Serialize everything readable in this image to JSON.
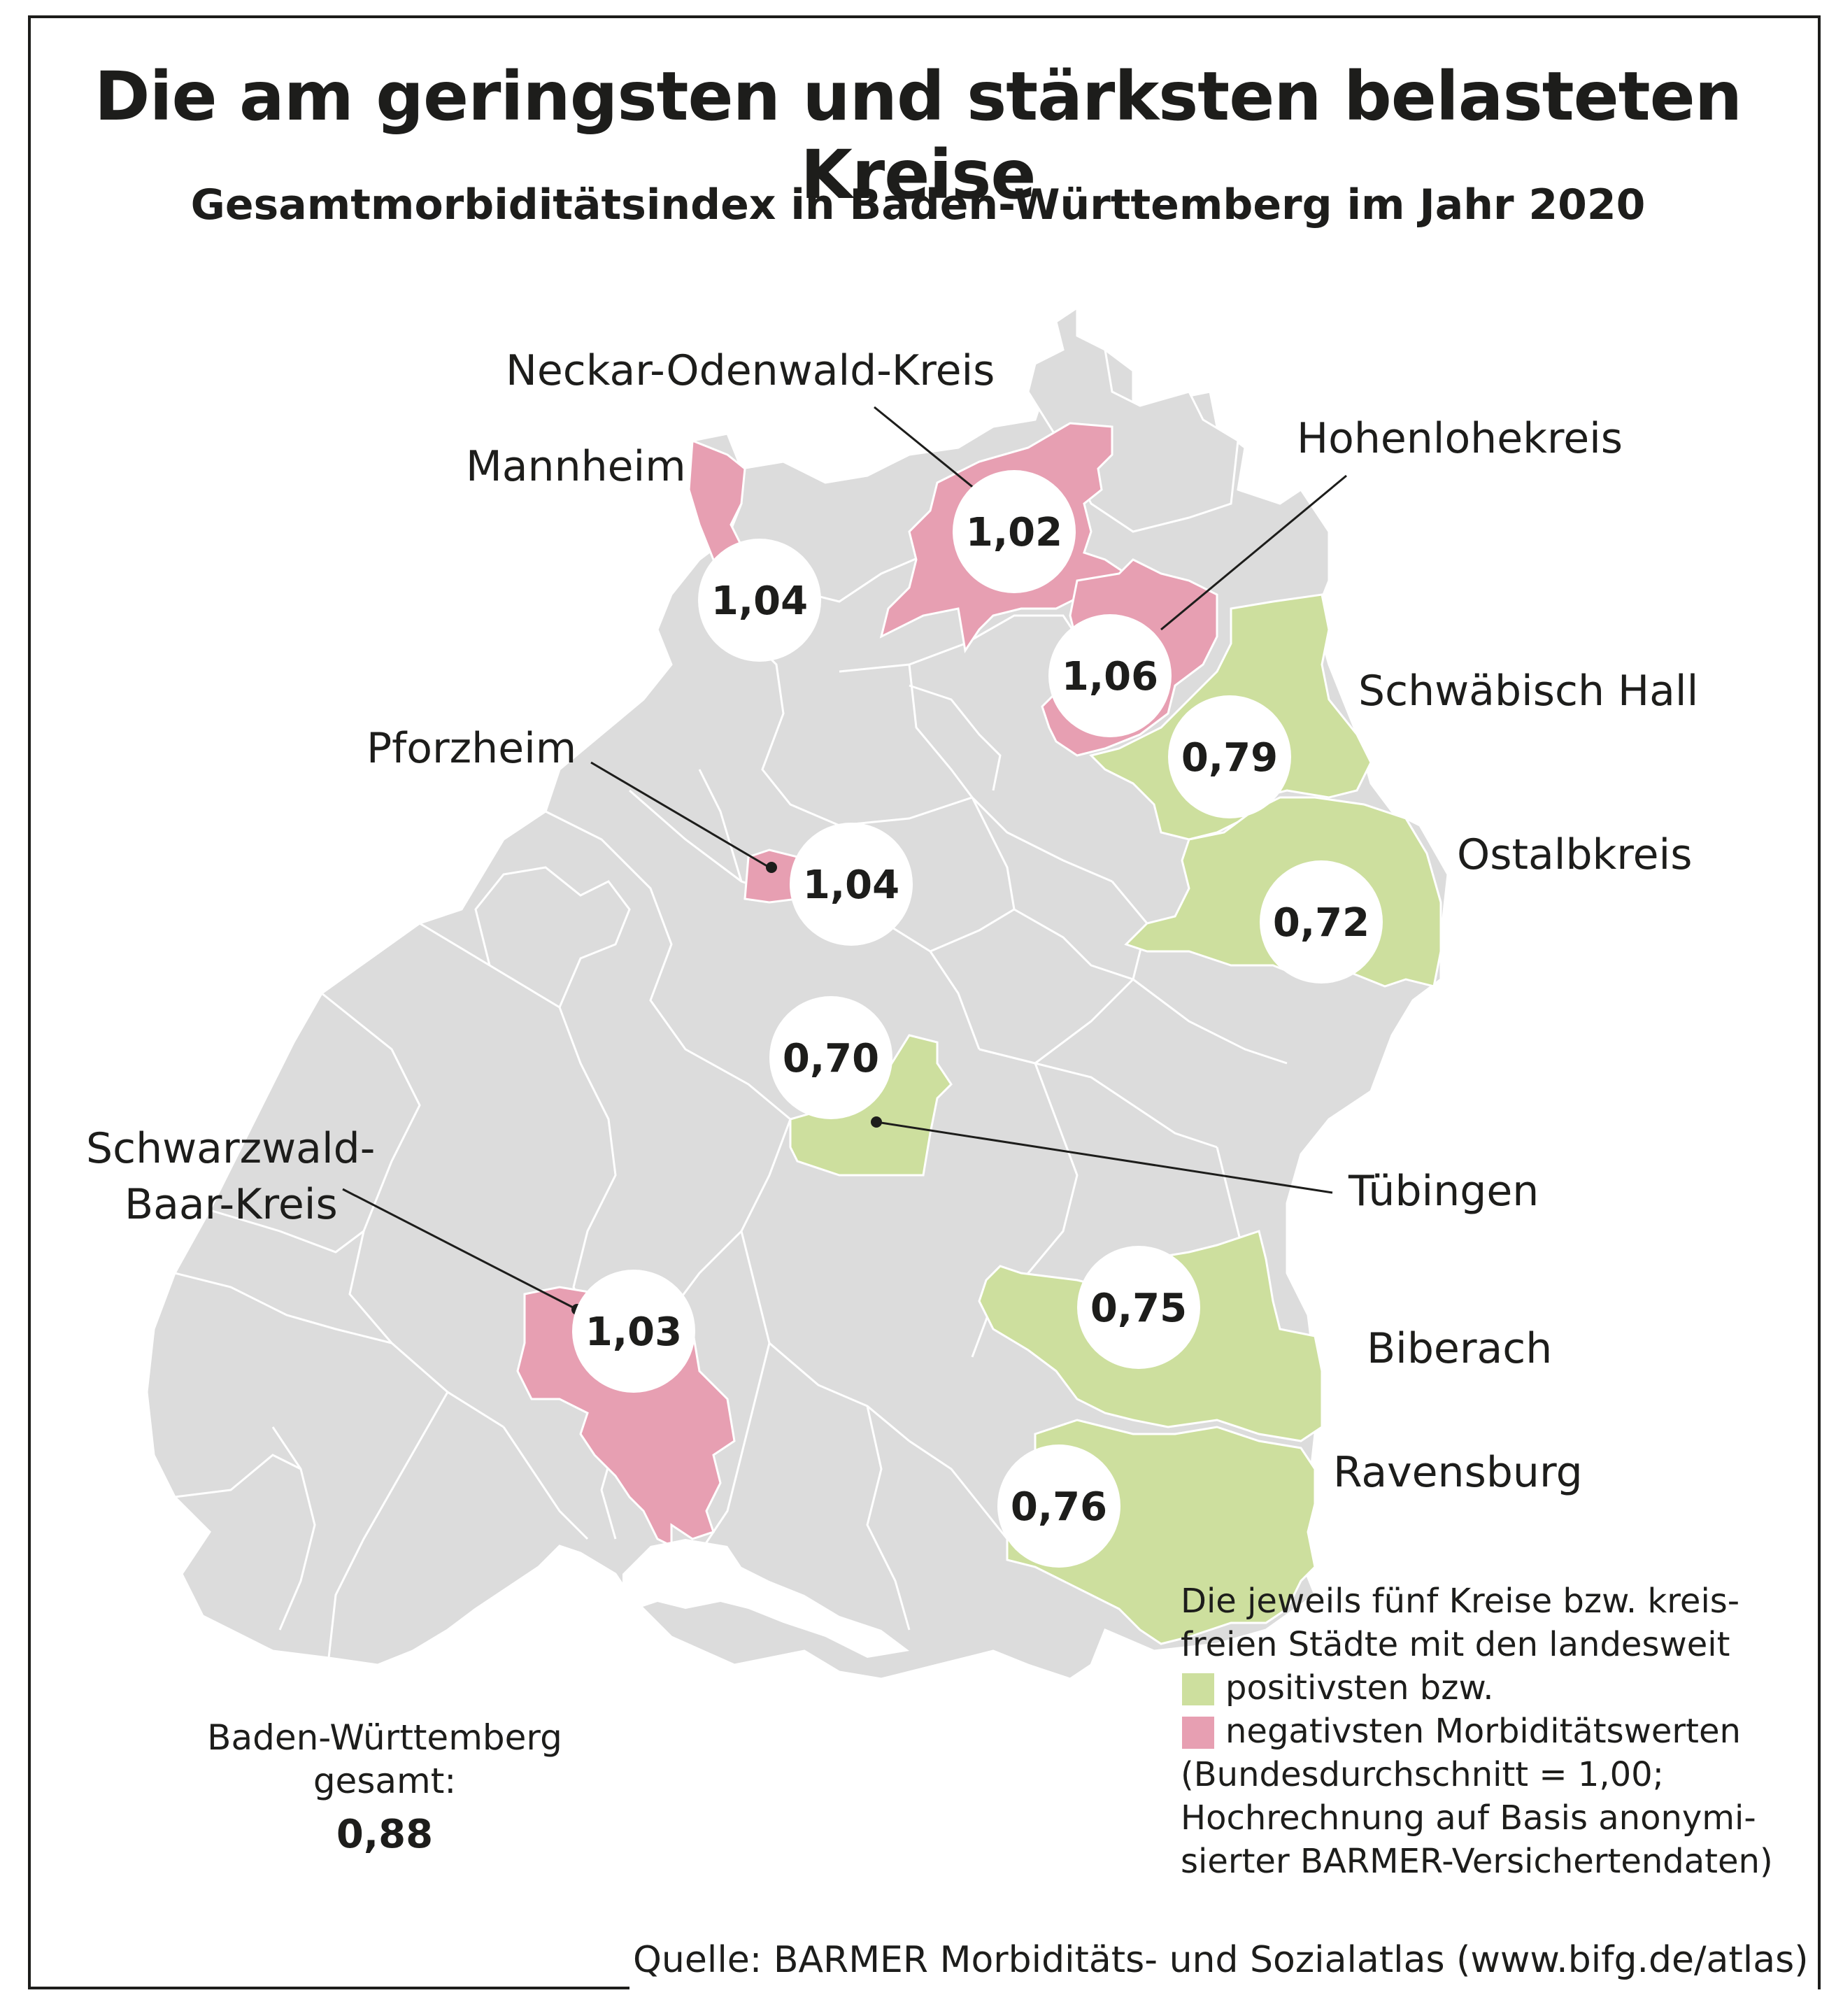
{
  "title": "Die am geringsten und stärksten belasteten Kreise",
  "subtitle": "Gesamtmorbiditätsindex in Baden-Württemberg im Jahr 2020",
  "colors": {
    "base": "#dcdcdc",
    "border": "#ffffff",
    "positive": "#cddf9e",
    "negative": "#e79fb2",
    "text": "#1d1d1b"
  },
  "regions": [
    {
      "name": "Mannheim",
      "value": "1,04",
      "category": "negative"
    },
    {
      "name": "Neckar-Odenwald-Kreis",
      "value": "1,02",
      "category": "negative"
    },
    {
      "name": "Hohenlohekreis",
      "value": "1,06",
      "category": "negative"
    },
    {
      "name": "Schwäbisch Hall",
      "value": "0,79",
      "category": "positive"
    },
    {
      "name": "Pforzheim",
      "value": "1,04",
      "category": "negative"
    },
    {
      "name": "Ostalbkreis",
      "value": "0,72",
      "category": "positive"
    },
    {
      "name": "Tübingen",
      "value": "0,70",
      "category": "positive"
    },
    {
      "name": "Schwarzwald-",
      "name2": "Baar-Kreis",
      "value": "1,03",
      "category": "negative"
    },
    {
      "name": "Biberach",
      "value": "0,75",
      "category": "positive"
    },
    {
      "name": "Ravensburg",
      "value": "0,76",
      "category": "positive"
    }
  ],
  "legend": {
    "line1": "Die jeweils fünf Kreise bzw. kreis-",
    "line2": "freien Städte mit den landesweit",
    "positive": "positivsten bzw.",
    "negative": "negativsten Morbiditätswerten",
    "line5": "(Bundesdurchschnitt = 1,00;",
    "line6": "Hochrechnung auf Basis anonymi-",
    "line7": "sierter BARMER-Versichertendaten)"
  },
  "total": {
    "line1": "Baden-Württemberg",
    "line2": "gesamt:",
    "value": "0,88"
  },
  "source": "Quelle: BARMER Morbiditäts- und Sozialatlas (www.bifg.de/atlas)"
}
